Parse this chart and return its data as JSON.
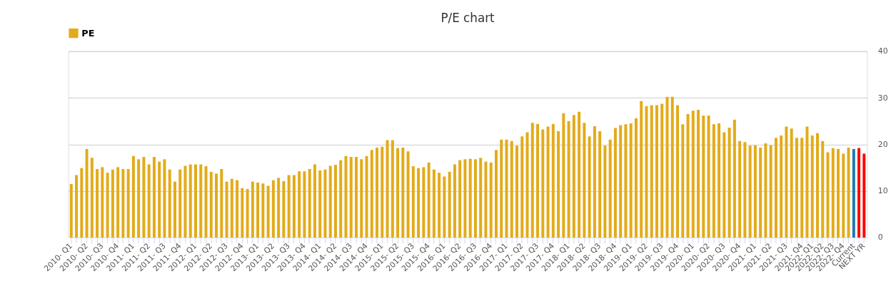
{
  "chart_data": {
    "type": "bar",
    "title": "P/E chart",
    "categories": [
      "2010- Q1",
      null,
      null,
      "2010- Q2",
      null,
      null,
      "2010- Q3",
      null,
      null,
      "2010- Q4",
      null,
      null,
      "2011- Q1",
      null,
      null,
      "2011- Q2",
      null,
      null,
      "2011- Q3",
      null,
      null,
      "2011- Q4",
      null,
      null,
      "2012- Q1",
      null,
      null,
      "2012- Q2",
      null,
      null,
      "2012- Q3",
      null,
      null,
      "2012- Q4",
      null,
      null,
      "2013- Q1",
      null,
      null,
      "2013- Q2",
      null,
      null,
      "2013- Q3",
      null,
      null,
      "2013- Q4",
      null,
      null,
      "2014- Q1",
      null,
      null,
      "2014- Q2",
      null,
      null,
      "2014- Q3",
      null,
      null,
      "2014- Q4",
      null,
      null,
      "2015- Q1",
      null,
      null,
      "2015- Q2",
      null,
      null,
      "2015- Q3",
      null,
      null,
      "2015- Q4",
      null,
      null,
      "2016- Q1",
      null,
      null,
      "2016- Q2",
      null,
      null,
      "2016- Q3",
      null,
      null,
      "2016- Q4",
      null,
      null,
      "2017- Q1",
      null,
      null,
      "2017- Q2",
      null,
      null,
      "2017- Q3",
      null,
      null,
      "2017- Q4",
      null,
      null,
      "2018- Q1",
      null,
      null,
      "2018- Q2",
      null,
      null,
      "2018- Q3",
      null,
      null,
      "2018- Q4",
      null,
      null,
      "2019- Q1",
      null,
      null,
      "2019- Q2",
      null,
      null,
      "2019- Q3",
      null,
      null,
      "2019- Q4",
      null,
      null,
      "2020- Q1",
      null,
      null,
      "2020- Q2",
      null,
      null,
      "2020- Q3",
      null,
      null,
      "2020- Q4",
      null,
      null,
      "2021- Q1",
      null,
      null,
      "2021- Q2",
      null,
      null,
      "2021- Q3",
      null,
      null,
      "2021- Q4",
      null,
      "2022- Q1",
      null,
      "2022- Q2",
      null,
      "2022- Q3",
      null,
      "2022- Q4",
      null,
      "Current",
      null,
      "NEXT YR"
    ],
    "series": [
      {
        "name": "PE",
        "color": "#e3ab1a",
        "values": [
          11.5,
          13.4,
          14.9,
          19.0,
          17.1,
          14.7,
          15.1,
          13.9,
          14.6,
          15.1,
          14.7,
          14.7,
          17.5,
          16.8,
          17.3,
          15.7,
          17.3,
          16.3,
          16.8,
          14.6,
          12.0,
          14.6,
          15.4,
          15.7,
          15.7,
          15.7,
          15.3,
          14.1,
          13.7,
          14.7,
          12.0,
          12.6,
          12.3,
          10.6,
          10.4,
          12.0,
          11.8,
          11.6,
          11.1,
          12.3,
          12.8,
          12.1,
          13.4,
          13.4,
          14.2,
          14.2,
          14.7,
          15.7,
          14.4,
          14.6,
          15.4,
          15.6,
          16.6,
          17.5,
          17.3,
          17.3,
          16.8,
          17.5,
          18.8,
          19.3,
          19.5,
          20.9,
          20.9,
          19.2,
          19.3,
          18.5,
          15.3,
          14.9,
          15.1,
          16.1,
          14.6,
          13.9,
          13.1,
          14.1,
          15.7,
          16.6,
          16.8,
          16.9,
          16.8,
          17.1,
          16.3,
          16.1,
          18.8,
          21.0,
          21.0,
          20.7,
          19.7,
          21.7,
          22.6,
          24.6,
          24.4,
          23.2,
          23.8,
          24.4,
          22.8,
          26.7,
          25.0,
          26.3,
          27.0,
          24.6,
          21.7,
          23.9,
          22.8,
          19.7,
          21.0,
          23.5,
          24.1,
          24.3,
          24.5,
          25.6,
          29.3,
          28.2,
          28.4,
          28.4,
          28.7,
          30.2,
          30.2,
          28.4,
          24.3,
          26.5,
          27.2,
          27.4,
          26.2,
          26.2,
          24.3,
          24.5,
          22.6,
          23.6,
          25.3,
          20.7,
          20.5,
          19.7,
          19.8,
          19.3,
          20.2,
          19.8,
          21.4,
          21.9,
          23.8,
          23.4,
          21.4,
          21.4,
          23.8,
          21.9,
          22.4,
          20.7,
          18.3,
          19.2,
          19.0,
          18.0,
          19.3,
          19.0,
          19.2,
          18.0
        ],
        "colors": [
          "#e3ab1a",
          "#e3ab1a",
          "#e3ab1a",
          "#e3ab1a",
          "#e3ab1a",
          "#e3ab1a",
          "#e3ab1a",
          "#e3ab1a",
          "#e3ab1a",
          "#e3ab1a",
          "#e3ab1a",
          "#e3ab1a",
          "#e3ab1a",
          "#e3ab1a",
          "#e3ab1a",
          "#e3ab1a",
          "#e3ab1a",
          "#e3ab1a",
          "#e3ab1a",
          "#e3ab1a",
          "#e3ab1a",
          "#e3ab1a",
          "#e3ab1a",
          "#e3ab1a",
          "#e3ab1a",
          "#e3ab1a",
          "#e3ab1a",
          "#e3ab1a",
          "#e3ab1a",
          "#e3ab1a",
          "#e3ab1a",
          "#e3ab1a",
          "#e3ab1a",
          "#e3ab1a",
          "#e3ab1a",
          "#e3ab1a",
          "#e3ab1a",
          "#e3ab1a",
          "#e3ab1a",
          "#e3ab1a",
          "#e3ab1a",
          "#e3ab1a",
          "#e3ab1a",
          "#e3ab1a",
          "#e3ab1a",
          "#e3ab1a",
          "#e3ab1a",
          "#e3ab1a",
          "#e3ab1a",
          "#e3ab1a",
          "#e3ab1a",
          "#e3ab1a",
          "#e3ab1a",
          "#e3ab1a",
          "#e3ab1a",
          "#e3ab1a",
          "#e3ab1a",
          "#e3ab1a",
          "#e3ab1a",
          "#e3ab1a",
          "#e3ab1a",
          "#e3ab1a",
          "#e3ab1a",
          "#e3ab1a",
          "#e3ab1a",
          "#e3ab1a",
          "#e3ab1a",
          "#e3ab1a",
          "#e3ab1a",
          "#e3ab1a",
          "#e3ab1a",
          "#e3ab1a",
          "#e3ab1a",
          "#e3ab1a",
          "#e3ab1a",
          "#e3ab1a",
          "#e3ab1a",
          "#e3ab1a",
          "#e3ab1a",
          "#e3ab1a",
          "#e3ab1a",
          "#e3ab1a",
          "#e3ab1a",
          "#e3ab1a",
          "#e3ab1a",
          "#e3ab1a",
          "#e3ab1a",
          "#e3ab1a",
          "#e3ab1a",
          "#e3ab1a",
          "#e3ab1a",
          "#e3ab1a",
          "#e3ab1a",
          "#e3ab1a",
          "#e3ab1a",
          "#e3ab1a",
          "#e3ab1a",
          "#e3ab1a",
          "#e3ab1a",
          "#e3ab1a",
          "#e3ab1a",
          "#e3ab1a",
          "#e3ab1a",
          "#e3ab1a",
          "#e3ab1a",
          "#e3ab1a",
          "#e3ab1a",
          "#e3ab1a",
          "#e3ab1a",
          "#e3ab1a",
          "#e3ab1a",
          "#e3ab1a",
          "#e3ab1a",
          "#e3ab1a",
          "#e3ab1a",
          "#e3ab1a",
          "#e3ab1a",
          "#e3ab1a",
          "#e3ab1a",
          "#e3ab1a",
          "#e3ab1a",
          "#e3ab1a",
          "#e3ab1a",
          "#e3ab1a",
          "#e3ab1a",
          "#e3ab1a",
          "#e3ab1a",
          "#e3ab1a",
          "#e3ab1a",
          "#e3ab1a",
          "#e3ab1a",
          "#e3ab1a",
          "#e3ab1a",
          "#e3ab1a",
          "#e3ab1a",
          "#e3ab1a",
          "#e3ab1a",
          "#e3ab1a",
          "#e3ab1a",
          "#e3ab1a",
          "#e3ab1a",
          "#e3ab1a",
          "#e3ab1a",
          "#e3ab1a",
          "#e3ab1a",
          "#e3ab1a",
          "#e3ab1a",
          "#e3ab1a",
          "#e3ab1a",
          "#e3ab1a",
          "#e3ab1a",
          "#1f77b4",
          "#ff0000",
          "#ff0000"
        ]
      }
    ],
    "ylim": [
      0,
      40
    ],
    "yticks": [
      0,
      10,
      20,
      30,
      40
    ],
    "grid": "y",
    "legend": "top"
  }
}
